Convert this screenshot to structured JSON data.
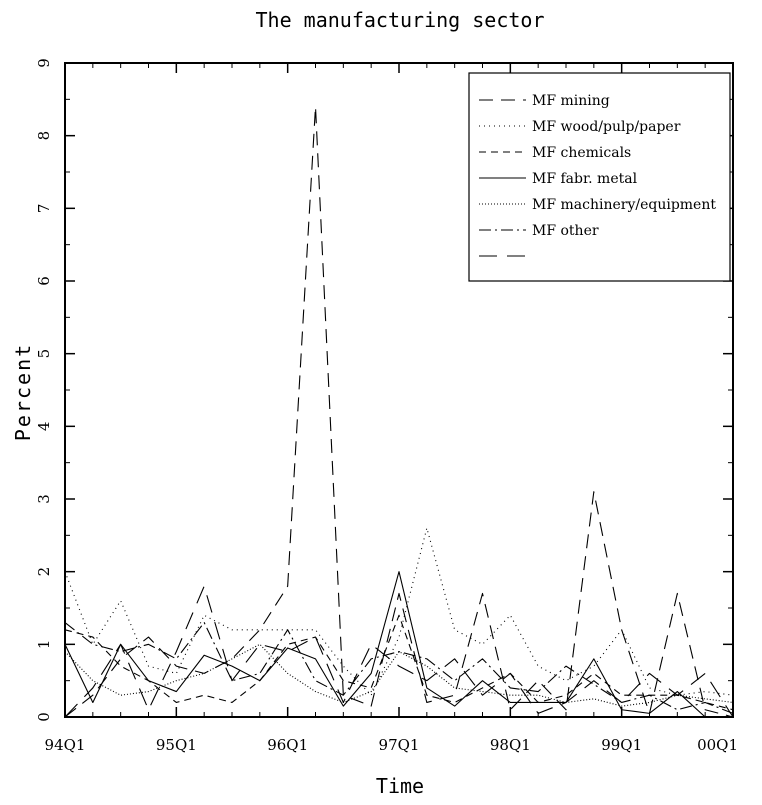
{
  "chart_data": {
    "type": "line",
    "title": "The manufacturing sector",
    "xlabel": "Time",
    "ylabel": "Percent",
    "ylim": [
      0,
      9
    ],
    "xlim": [
      0,
      24
    ],
    "yticks": [
      0,
      1,
      2,
      3,
      4,
      5,
      6,
      7,
      8,
      9
    ],
    "xticks": [
      {
        "pos": 0,
        "label": "94Q1"
      },
      {
        "pos": 4,
        "label": "95Q1"
      },
      {
        "pos": 8,
        "label": "96Q1"
      },
      {
        "pos": 12,
        "label": "97Q1"
      },
      {
        "pos": 16,
        "label": "98Q1"
      },
      {
        "pos": 20,
        "label": "99Q1"
      },
      {
        "pos": 24,
        "label": "00Q1"
      }
    ],
    "grid": false,
    "legend_position": "top-right",
    "series": [
      {
        "name": "MF mining",
        "dash": "14,8",
        "values": [
          0,
          0.3,
          0.8,
          1.1,
          0.7,
          0.6,
          0.8,
          1.2,
          1.8,
          8.4,
          0.3,
          0.15,
          1.7,
          0.2,
          0.3,
          1.7,
          0.1,
          0.5,
          0.1,
          3.1,
          1.2,
          0.05,
          1.7,
          0.1,
          0
        ]
      },
      {
        "name": "MF wood/pulp/paper",
        "dash": "1,4",
        "values": [
          2.0,
          1.0,
          1.6,
          0.7,
          0.6,
          1.4,
          1.2,
          1.2,
          1.2,
          1.2,
          0.7,
          0.3,
          1.1,
          2.6,
          1.2,
          1.0,
          1.4,
          0.7,
          0.5,
          0.7,
          1.2,
          0.4,
          0.3,
          0.35,
          0.3
        ]
      },
      {
        "name": "MF chemicals",
        "dash": "7,5",
        "values": [
          1.2,
          1.1,
          0.7,
          0.5,
          0.2,
          0.3,
          0.2,
          0.5,
          1.0,
          1.1,
          0.5,
          0.4,
          1.4,
          0.3,
          0.2,
          0.4,
          0.6,
          0.2,
          0.3,
          0.6,
          0.3,
          0.3,
          0.3,
          0.2,
          0.1
        ]
      },
      {
        "name": "MF fabr. metal",
        "dash": "",
        "values": [
          1.0,
          0.2,
          1.0,
          0.5,
          0.35,
          0.85,
          0.7,
          0.5,
          0.95,
          0.8,
          0.15,
          0.6,
          2.0,
          0.4,
          0.15,
          0.5,
          0.2,
          0.2,
          0.2,
          0.8,
          0.1,
          0.05,
          0.35,
          0.0,
          0
        ]
      },
      {
        "name": "MF machinery/equipment",
        "dash": "1,2",
        "values": [
          0.9,
          0.5,
          0.3,
          0.35,
          0.5,
          0.6,
          0.8,
          1.0,
          0.6,
          0.35,
          0.2,
          0.35,
          0.9,
          0.7,
          0.4,
          0.35,
          0.3,
          0.3,
          0.2,
          0.25,
          0.15,
          0.2,
          0.3,
          0.25,
          0.2
        ]
      },
      {
        "name": "MF other",
        "dash": "12,4,2,4",
        "values": [
          1.3,
          1.0,
          0.9,
          1.0,
          0.8,
          1.3,
          0.5,
          0.6,
          1.2,
          0.5,
          0.3,
          0.8,
          0.9,
          0.8,
          0.5,
          0.8,
          0.4,
          0.35,
          0.7,
          0.45,
          0.2,
          0.3,
          0.1,
          0.2,
          0.05
        ]
      },
      {
        "name": "",
        "dash": "18,10",
        "values": [
          0,
          0.4,
          1.0,
          0.1,
          0.9,
          1.8,
          0.5,
          1.0,
          0.9,
          1.1,
          0.2,
          1.0,
          0.7,
          0.5,
          0.8,
          0.3,
          0.6,
          0.05,
          0.2,
          0.5,
          0.2,
          0.6,
          0.3,
          0.6,
          0
        ]
      }
    ]
  }
}
